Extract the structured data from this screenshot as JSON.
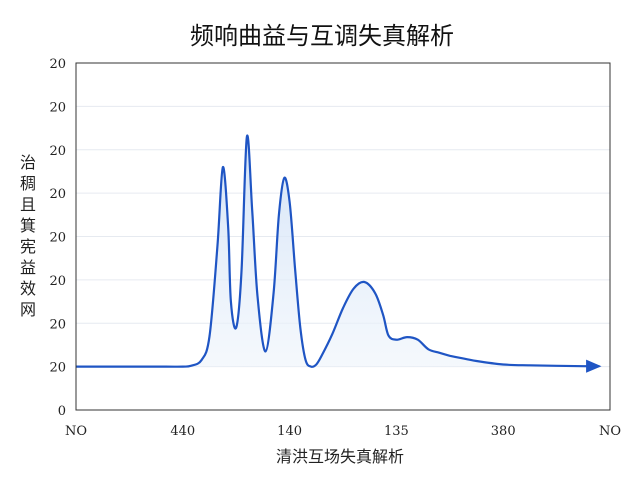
{
  "chart_data": {
    "type": "area",
    "title": "频响曲益与互调失真解析",
    "xlabel": "清洪互场失真解析",
    "ylabel": [
      "治",
      "稠",
      "且",
      "箕",
      "宪",
      "益",
      "效",
      "网"
    ],
    "x_tick_labels": [
      "NO",
      "440",
      "140",
      "135",
      "380",
      "NO"
    ],
    "y_tick_labels": [
      "0",
      "20",
      "20",
      "20",
      "20",
      "20",
      "20",
      "20",
      "20"
    ],
    "ylim": [
      0,
      8
    ],
    "xlim": [
      0,
      1
    ],
    "grid": true,
    "series": [
      {
        "x": [
          0.0,
          0.05,
          0.1,
          0.15,
          0.2,
          0.215,
          0.235,
          0.25,
          0.265,
          0.275,
          0.285,
          0.29,
          0.3,
          0.31,
          0.32,
          0.33,
          0.34,
          0.355,
          0.37,
          0.38,
          0.39,
          0.4,
          0.41,
          0.42,
          0.43,
          0.44,
          0.45,
          0.46,
          0.48,
          0.5,
          0.52,
          0.54,
          0.56,
          0.575,
          0.585,
          0.6,
          0.62,
          0.64,
          0.66,
          0.68,
          0.7,
          0.72,
          0.75,
          0.8,
          0.85,
          0.9,
          0.95,
          0.98
        ],
        "y": [
          1.0,
          1.0,
          1.0,
          1.0,
          1.0,
          1.02,
          1.15,
          1.7,
          3.8,
          5.6,
          4.2,
          2.5,
          1.9,
          3.2,
          6.3,
          4.6,
          2.6,
          1.35,
          2.7,
          4.5,
          5.35,
          4.8,
          3.3,
          1.9,
          1.15,
          1.0,
          1.05,
          1.25,
          1.75,
          2.35,
          2.8,
          2.95,
          2.7,
          2.2,
          1.72,
          1.62,
          1.68,
          1.62,
          1.4,
          1.32,
          1.25,
          1.2,
          1.13,
          1.05,
          1.03,
          1.02,
          1.01,
          1.01
        ]
      }
    ],
    "colors": {
      "line": "#1f55c4",
      "fill": "#dde9f7",
      "grid": "#e6eaf0",
      "axis": "#333333"
    }
  }
}
